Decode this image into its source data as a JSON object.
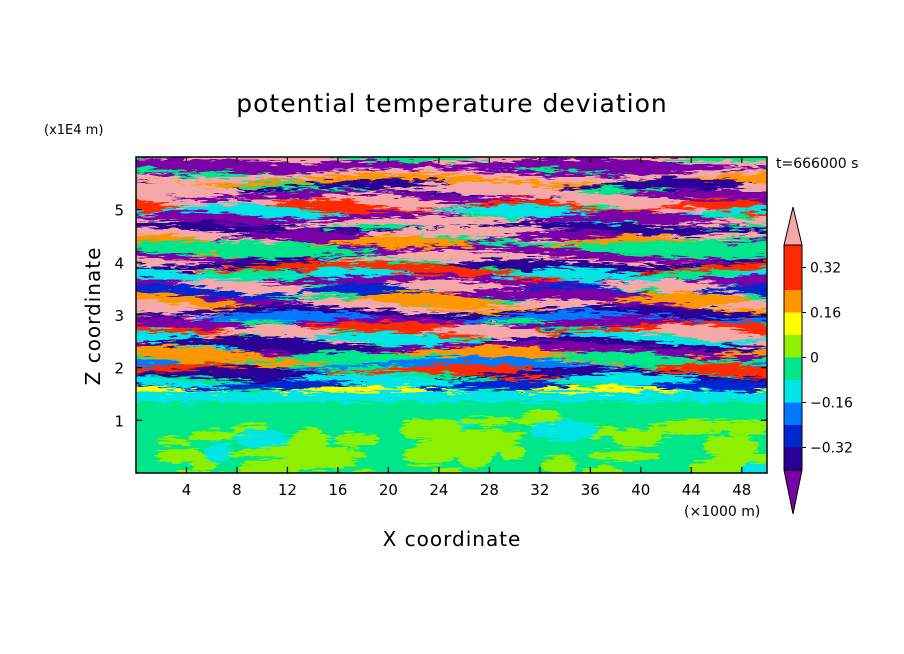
{
  "chart_data": {
    "type": "heatmap",
    "title": "potential temperature deviation",
    "xlabel": "X coordinate",
    "ylabel": "Z coordinate",
    "x_unit": "(×1000 m)",
    "y_unit": "(x1E4 m)",
    "time_label": "t=666000 s",
    "xlim": [
      0,
      50
    ],
    "ylim": [
      0,
      6
    ],
    "x_ticks": [
      "4",
      "8",
      "12",
      "16",
      "20",
      "24",
      "28",
      "32",
      "36",
      "40",
      "44",
      "48"
    ],
    "y_ticks": [
      "1",
      "2",
      "3",
      "4",
      "5"
    ],
    "colorbar": {
      "labels": [
        "0.32",
        "0.16",
        "0",
        "−0.16",
        "−0.32"
      ],
      "label_values": [
        0.32,
        0.16,
        0,
        -0.16,
        -0.32
      ],
      "levels": [
        -0.4,
        -0.32,
        -0.24,
        -0.16,
        -0.08,
        0,
        0.08,
        0.16,
        0.24,
        0.32,
        0.4
      ],
      "colors": [
        "#7a00a8",
        "#2a0096",
        "#0028d0",
        "#0078ff",
        "#00e6e6",
        "#00e68a",
        "#8cf000",
        "#ffff00",
        "#ff9600",
        "#ff2a00",
        "#f4a8a8"
      ]
    },
    "grid": false
  }
}
